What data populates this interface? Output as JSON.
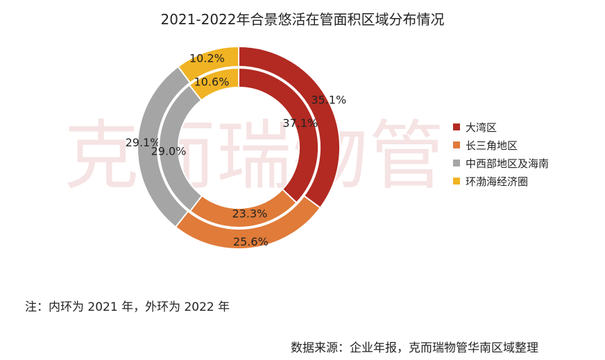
{
  "title": "2021-2022年合景悠活在管面积区域分布情况",
  "watermark": "克而瑞物管",
  "note": "注：内环为 2021 年，外环为 2022 年",
  "source": "数据来源：企业年报，克而瑞物管华南区域整理",
  "chart_data": {
    "type": "pie",
    "variant": "nested-donut",
    "categories": [
      "大湾区",
      "长三角地区",
      "中西部地区及海南",
      "环渤海经济圈"
    ],
    "colors": [
      "#b22a22",
      "#e07b39",
      "#a5a5a5",
      "#f0b323"
    ],
    "series": [
      {
        "ring": "outer",
        "values": [
          35.1,
          25.6,
          29.1,
          10.2
        ],
        "labels": [
          "35.1%",
          "25.6%",
          "29.1%",
          "10.2%"
        ]
      },
      {
        "ring": "inner",
        "values": [
          37.1,
          23.3,
          29.0,
          10.6
        ],
        "labels": [
          "37.1%",
          "23.3%",
          "29.0%",
          "10.6%"
        ]
      }
    ],
    "legend_position": "right"
  }
}
